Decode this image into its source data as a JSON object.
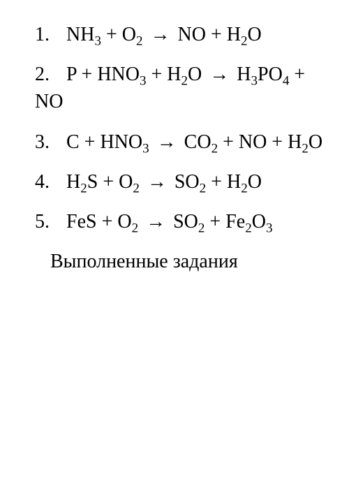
{
  "equations": [
    {
      "number": "1.",
      "html": "NH<sub>3</sub> + O<sub>2</sub> <span class='arrow'>→</span> NO + H<sub>2</sub>O"
    },
    {
      "number": "2.",
      "html": "P + HNO<sub>3</sub> + H<sub>2</sub>O <span class='arrow'>→</span> H<sub>3</sub>PO<sub>4</sub> + NO"
    },
    {
      "number": "3.",
      "html": "C + HNO<sub>3</sub> <span class='arrow'>→</span> CO<sub>2</sub> + NO + H<sub>2</sub>O"
    },
    {
      "number": "4.",
      "html": "H<sub>2</sub>S + O<sub>2</sub> <span class='arrow'>→</span> SO<sub>2</sub> + H<sub>2</sub>O"
    },
    {
      "number": "5.",
      "html": "FeS + O<sub>2</sub> <span class='arrow'>→</span> SO<sub>2</sub> + Fe<sub>2</sub>O<sub>3</sub>"
    }
  ],
  "footer": "Выполненные задания",
  "styles": {
    "font_family": "Times New Roman",
    "font_size_pt": 28,
    "text_color": "#000000",
    "background_color": "#ffffff"
  }
}
